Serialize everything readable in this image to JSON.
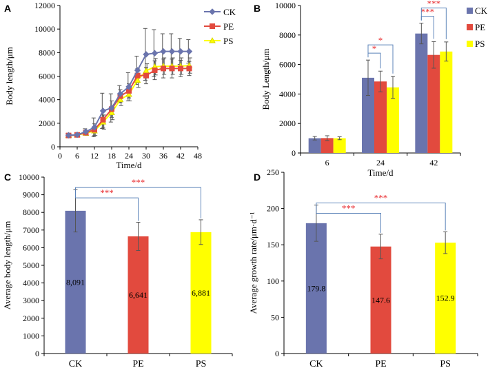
{
  "colors": {
    "CK": "#6a74ad",
    "PE": "#e24a3e",
    "PS": "#ffff00",
    "bracket": "#5b83b9",
    "sig": "#e8262a"
  },
  "chart_data": [
    {
      "panel": "A",
      "type": "line",
      "xlabel": "Time/d",
      "ylabel": "Body length/μm",
      "xlim": [
        0,
        48
      ],
      "ylim": [
        0,
        12000
      ],
      "xticks": [
        0,
        6,
        12,
        18,
        24,
        30,
        36,
        42,
        48
      ],
      "yticks": [
        0,
        2000,
        4000,
        6000,
        8000,
        10000,
        12000
      ],
      "legend": "top-right",
      "x": [
        3,
        6,
        9,
        12,
        15,
        18,
        21,
        24,
        27,
        30,
        33,
        36,
        39,
        42,
        45
      ],
      "series": [
        {
          "name": "CK",
          "marker": "diamond",
          "values": [
            980,
            1020,
            1280,
            1650,
            3050,
            3300,
            4500,
            5100,
            6500,
            7850,
            7950,
            8100,
            8100,
            8100,
            8100
          ],
          "errors": [
            150,
            150,
            250,
            800,
            1500,
            1200,
            700,
            1200,
            1200,
            2200,
            2000,
            1500,
            1500,
            1100,
            1000
          ]
        },
        {
          "name": "PE",
          "marker": "square",
          "values": [
            960,
            1010,
            1200,
            1450,
            2300,
            3200,
            4300,
            4750,
            6050,
            6050,
            6500,
            6650,
            6650,
            6650,
            6650
          ],
          "errors": [
            150,
            150,
            200,
            500,
            700,
            700,
            550,
            600,
            600,
            700,
            800,
            800,
            800,
            700,
            600
          ]
        },
        {
          "name": "PS",
          "marker": "triangle",
          "values": [
            950,
            1000,
            1150,
            1350,
            2100,
            2900,
            4000,
            4450,
            5650,
            6450,
            6800,
            6850,
            6850,
            6850,
            6900
          ],
          "errors": [
            120,
            120,
            180,
            400,
            600,
            600,
            500,
            550,
            600,
            600,
            700,
            700,
            700,
            700,
            650
          ]
        }
      ]
    },
    {
      "panel": "B",
      "type": "bar",
      "xlabel": "Time/d",
      "ylabel": "Body Length/μm",
      "categories": [
        "6",
        "24",
        "42"
      ],
      "ylim": [
        0,
        10000
      ],
      "yticks": [
        0,
        2000,
        4000,
        6000,
        8000,
        10000
      ],
      "legend": "right",
      "series": [
        {
          "name": "CK",
          "values": [
            1000,
            5100,
            8100
          ],
          "errors": [
            120,
            1200,
            700
          ]
        },
        {
          "name": "PE",
          "values": [
            1010,
            4850,
            6650
          ],
          "errors": [
            160,
            700,
            900
          ]
        },
        {
          "name": "PS",
          "values": [
            1000,
            4450,
            6880
          ],
          "errors": [
            100,
            750,
            650
          ]
        }
      ],
      "significance": [
        {
          "category": "24",
          "from": "CK",
          "to": "PE",
          "label": "*"
        },
        {
          "category": "24",
          "from": "CK",
          "to": "PS",
          "label": "*"
        },
        {
          "category": "42",
          "from": "CK",
          "to": "PE",
          "label": "***"
        },
        {
          "category": "42",
          "from": "CK",
          "to": "PS",
          "label": "***"
        }
      ]
    },
    {
      "panel": "C",
      "type": "bar",
      "xlabel": "",
      "ylabel": "Average body length/μm",
      "categories": [
        "CK",
        "PE",
        "PS"
      ],
      "values": [
        8091,
        6641,
        6881
      ],
      "errors": [
        1200,
        800,
        700
      ],
      "value_labels": [
        "8,091",
        "6,641",
        "6,881"
      ],
      "ylim": [
        0,
        10000
      ],
      "yticks": [
        0,
        1000,
        2000,
        3000,
        4000,
        5000,
        6000,
        7000,
        8000,
        9000,
        10000
      ],
      "significance": [
        {
          "from": "CK",
          "to": "PE",
          "label": "***"
        },
        {
          "from": "CK",
          "to": "PS",
          "label": "***"
        }
      ]
    },
    {
      "panel": "D",
      "type": "bar",
      "xlabel": "",
      "ylabel": "Average growth rate/μm·d⁻¹",
      "categories": [
        "CK",
        "PE",
        "PS"
      ],
      "values": [
        179.8,
        147.6,
        152.9
      ],
      "errors": [
        25,
        17,
        15
      ],
      "value_labels": [
        "179.8",
        "147.6",
        "152.9"
      ],
      "ylim": [
        0,
        250
      ],
      "yticks": [
        0,
        50,
        100,
        150,
        200,
        250
      ],
      "significance": [
        {
          "from": "CK",
          "to": "PE",
          "label": "***"
        },
        {
          "from": "CK",
          "to": "PS",
          "label": "***"
        }
      ]
    }
  ]
}
